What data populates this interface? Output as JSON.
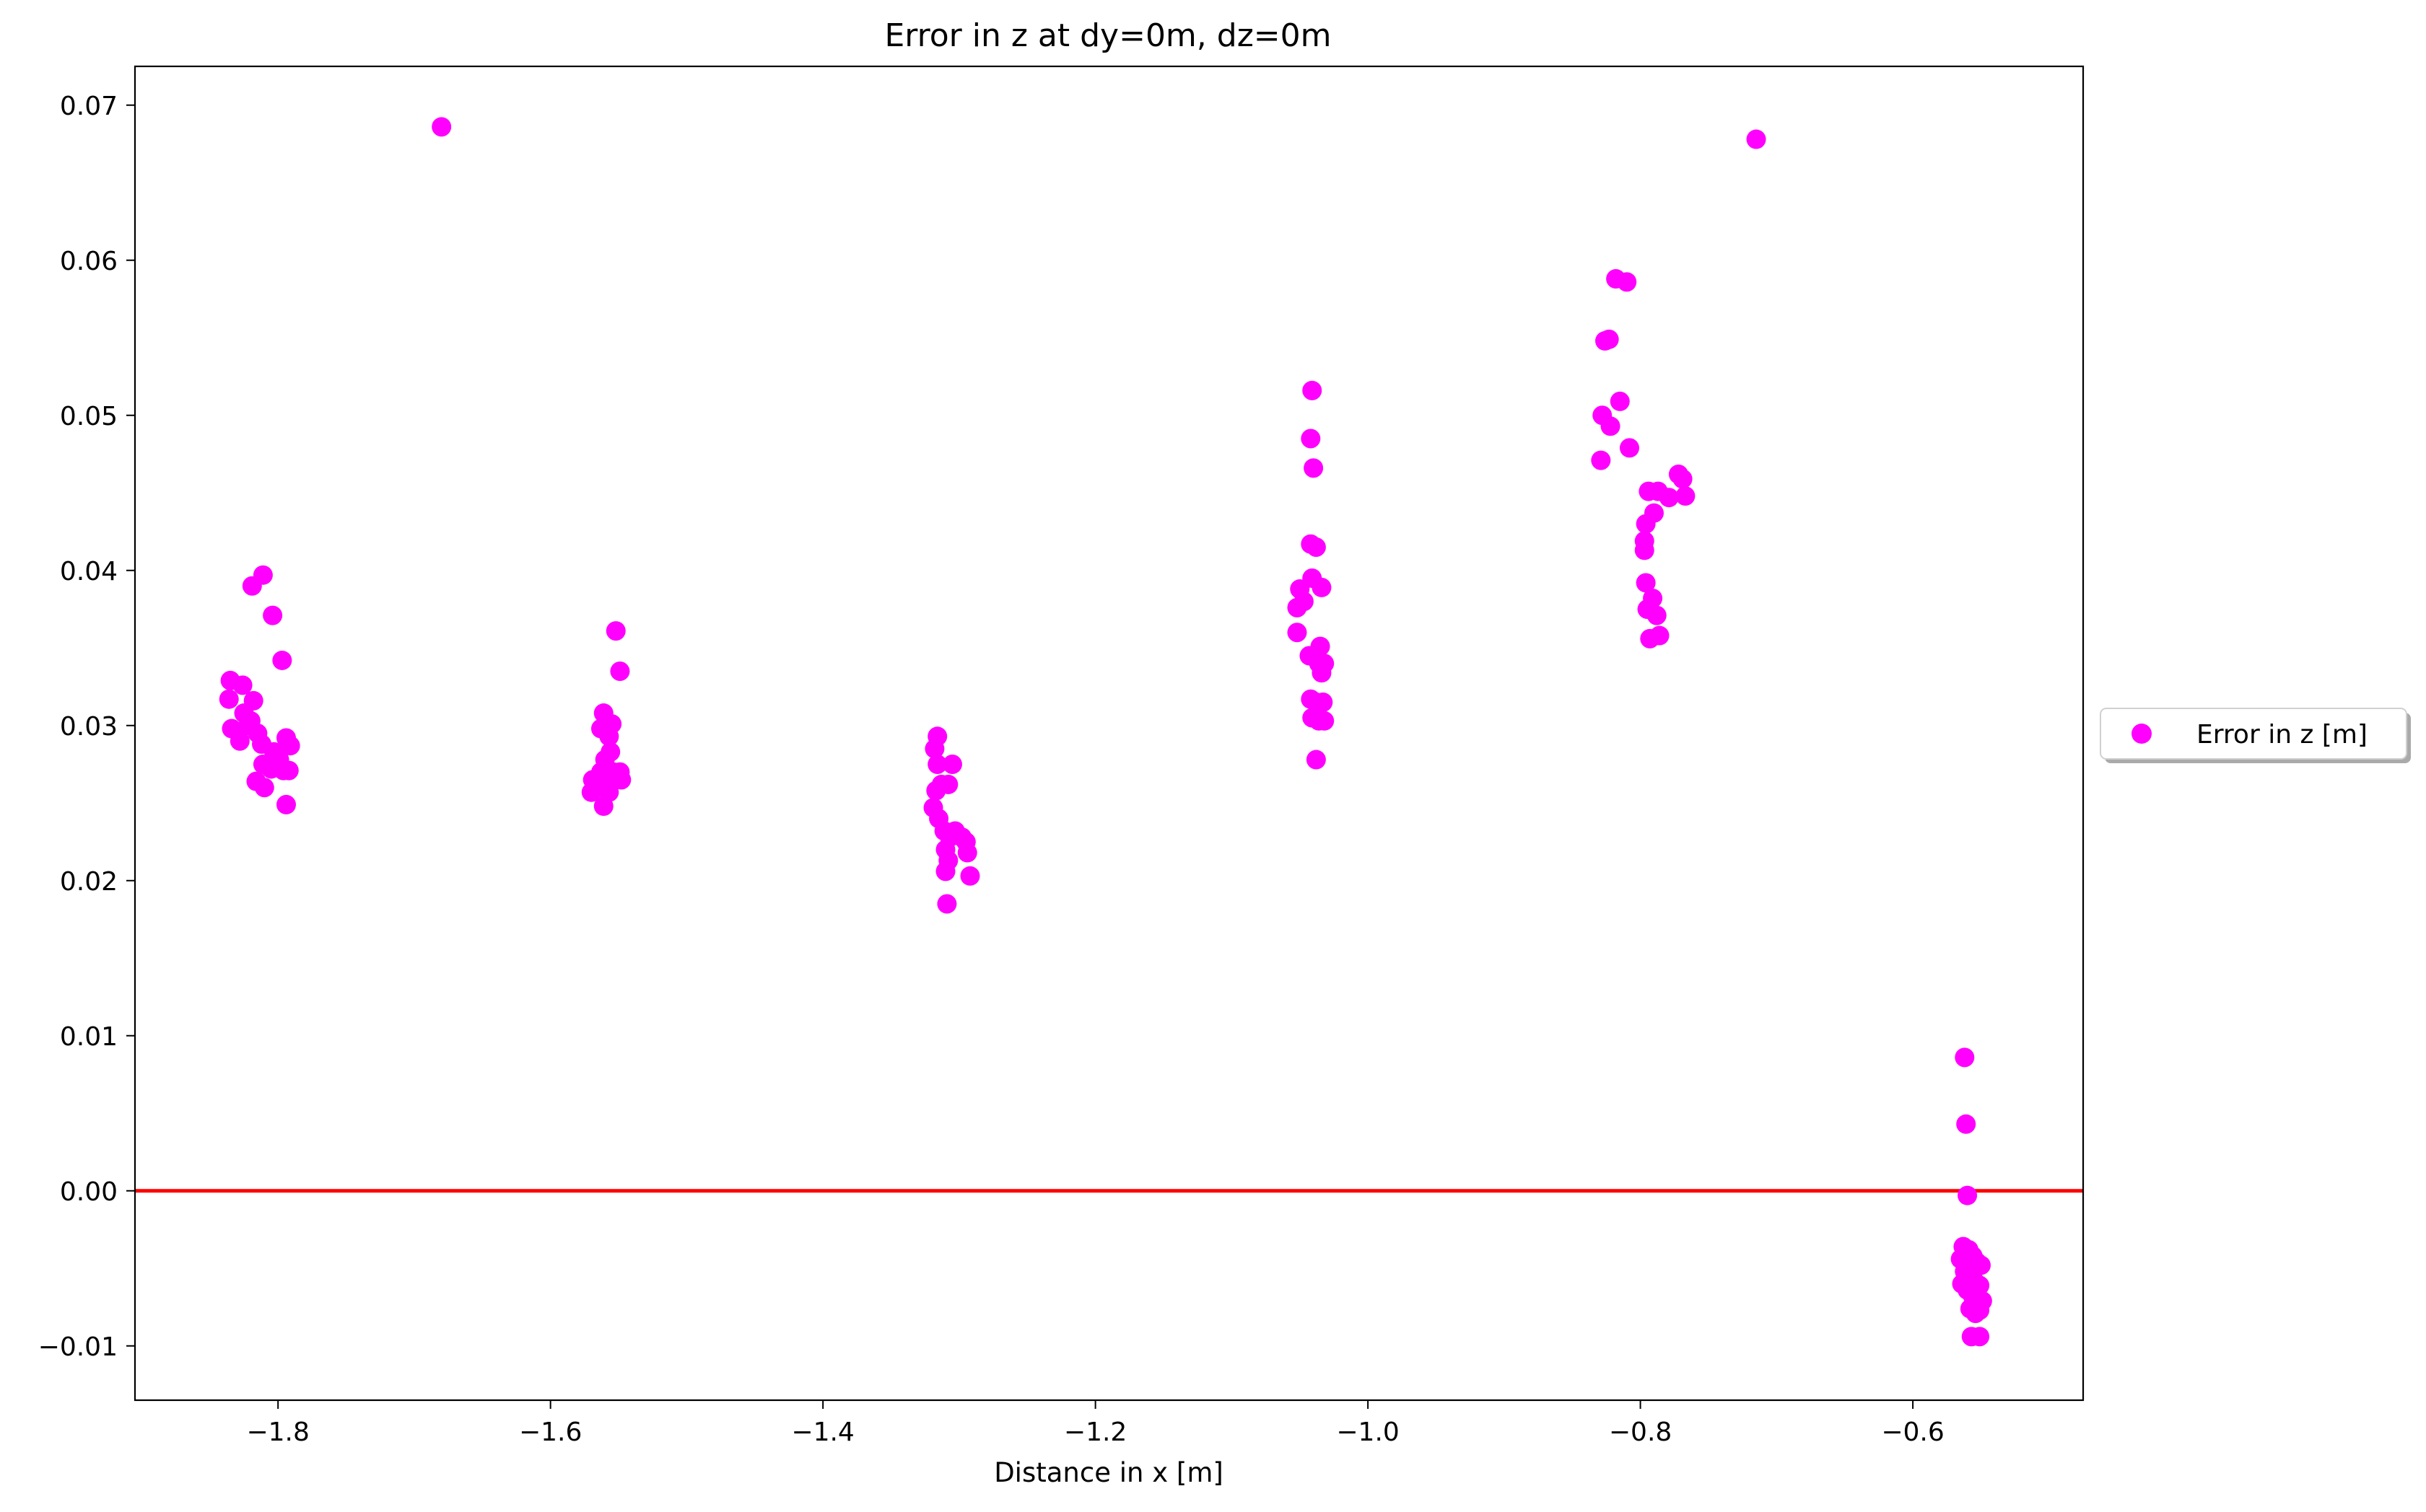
{
  "chart_data": {
    "type": "scatter",
    "title": "Error in z at dy=0m, dz=0m",
    "xlabel": "Distance in x [m]",
    "ylabel": "",
    "xlim": [
      -1.905,
      -0.475
    ],
    "ylim": [
      -0.0135,
      0.0725
    ],
    "x_ticks": [
      {
        "value": -1.8,
        "label": "−1.8"
      },
      {
        "value": -1.6,
        "label": "−1.6"
      },
      {
        "value": -1.4,
        "label": "−1.4"
      },
      {
        "value": -1.2,
        "label": "−1.2"
      },
      {
        "value": -1.0,
        "label": "−1.0"
      },
      {
        "value": -0.8,
        "label": "−0.8"
      },
      {
        "value": -0.6,
        "label": "−0.6"
      }
    ],
    "y_ticks": [
      {
        "value": -0.01,
        "label": "−0.01"
      },
      {
        "value": 0.0,
        "label": "0.00"
      },
      {
        "value": 0.01,
        "label": "0.01"
      },
      {
        "value": 0.02,
        "label": "0.02"
      },
      {
        "value": 0.03,
        "label": "0.03"
      },
      {
        "value": 0.04,
        "label": "0.04"
      },
      {
        "value": 0.05,
        "label": "0.05"
      },
      {
        "value": 0.06,
        "label": "0.06"
      },
      {
        "value": 0.07,
        "label": "0.07"
      }
    ],
    "grid": false,
    "legend_position": "center-right outside",
    "reference_line": {
      "y": 0.0,
      "color": "#ff0000"
    },
    "series": [
      {
        "name": "Error in z [m]",
        "color": "#ff00ff",
        "points": [
          [
            -1.835,
            0.0329
          ],
          [
            -1.836,
            0.0317
          ],
          [
            -1.834,
            0.0298
          ],
          [
            -1.826,
            0.0326
          ],
          [
            -1.825,
            0.0308
          ],
          [
            -1.822,
            0.03
          ],
          [
            -1.828,
            0.029
          ],
          [
            -1.819,
            0.039
          ],
          [
            -1.811,
            0.0397
          ],
          [
            -1.818,
            0.0316
          ],
          [
            -1.82,
            0.0303
          ],
          [
            -1.815,
            0.0295
          ],
          [
            -1.812,
            0.0288
          ],
          [
            -1.816,
            0.0264
          ],
          [
            -1.81,
            0.026
          ],
          [
            -1.811,
            0.0275
          ],
          [
            -1.805,
            0.0272
          ],
          [
            -1.804,
            0.0371
          ],
          [
            -1.797,
            0.0342
          ],
          [
            -1.803,
            0.0283
          ],
          [
            -1.799,
            0.0278
          ],
          [
            -1.794,
            0.0292
          ],
          [
            -1.791,
            0.0287
          ],
          [
            -1.792,
            0.0271
          ],
          [
            -1.796,
            0.0271
          ],
          [
            -1.794,
            0.0249
          ],
          [
            -1.68,
            0.0686
          ],
          [
            -1.569,
            0.0265
          ],
          [
            -1.57,
            0.0257
          ],
          [
            -1.563,
            0.0298
          ],
          [
            -1.561,
            0.0308
          ],
          [
            -1.555,
            0.0301
          ],
          [
            -1.557,
            0.0293
          ],
          [
            -1.552,
            0.0361
          ],
          [
            -1.549,
            0.0335
          ],
          [
            -1.56,
            0.0278
          ],
          [
            -1.556,
            0.0283
          ],
          [
            -1.554,
            0.027
          ],
          [
            -1.559,
            0.0264
          ],
          [
            -1.562,
            0.026
          ],
          [
            -1.557,
            0.0257
          ],
          [
            -1.561,
            0.0248
          ],
          [
            -1.549,
            0.027
          ],
          [
            -1.548,
            0.0265
          ],
          [
            -1.563,
            0.027
          ],
          [
            -1.316,
            0.0293
          ],
          [
            -1.318,
            0.0285
          ],
          [
            -1.316,
            0.0275
          ],
          [
            -1.313,
            0.0262
          ],
          [
            -1.317,
            0.0258
          ],
          [
            -1.319,
            0.0247
          ],
          [
            -1.315,
            0.024
          ],
          [
            -1.305,
            0.0275
          ],
          [
            -1.308,
            0.0262
          ],
          [
            -1.311,
            0.0232
          ],
          [
            -1.307,
            0.0228
          ],
          [
            -1.303,
            0.0232
          ],
          [
            -1.298,
            0.0228
          ],
          [
            -1.295,
            0.0225
          ],
          [
            -1.294,
            0.0218
          ],
          [
            -1.31,
            0.022
          ],
          [
            -1.308,
            0.0213
          ],
          [
            -1.31,
            0.0206
          ],
          [
            -1.292,
            0.0203
          ],
          [
            -1.309,
            0.0185
          ],
          [
            -1.041,
            0.0516
          ],
          [
            -1.042,
            0.0485
          ],
          [
            -1.04,
            0.0466
          ],
          [
            -1.052,
            0.0376
          ],
          [
            -1.05,
            0.0388
          ],
          [
            -1.047,
            0.038
          ],
          [
            -1.052,
            0.036
          ],
          [
            -1.042,
            0.0417
          ],
          [
            -1.038,
            0.0415
          ],
          [
            -1.041,
            0.0395
          ],
          [
            -1.034,
            0.0389
          ],
          [
            -1.043,
            0.0345
          ],
          [
            -1.035,
            0.0351
          ],
          [
            -1.036,
            0.034
          ],
          [
            -1.032,
            0.034
          ],
          [
            -1.034,
            0.0334
          ],
          [
            -1.042,
            0.0317
          ],
          [
            -1.038,
            0.0315
          ],
          [
            -1.033,
            0.0315
          ],
          [
            -1.041,
            0.0305
          ],
          [
            -1.036,
            0.0303
          ],
          [
            -1.032,
            0.0303
          ],
          [
            -1.038,
            0.0278
          ],
          [
            -0.818,
            0.0588
          ],
          [
            -0.81,
            0.0586
          ],
          [
            -0.826,
            0.0548
          ],
          [
            -0.823,
            0.0549
          ],
          [
            -0.815,
            0.0509
          ],
          [
            -0.828,
            0.05
          ],
          [
            -0.822,
            0.0493
          ],
          [
            -0.808,
            0.0479
          ],
          [
            -0.829,
            0.0471
          ],
          [
            -0.794,
            0.0451
          ],
          [
            -0.787,
            0.0451
          ],
          [
            -0.779,
            0.0447
          ],
          [
            -0.772,
            0.0462
          ],
          [
            -0.769,
            0.0459
          ],
          [
            -0.767,
            0.0448
          ],
          [
            -0.79,
            0.0437
          ],
          [
            -0.796,
            0.043
          ],
          [
            -0.797,
            0.0419
          ],
          [
            -0.797,
            0.0413
          ],
          [
            -0.796,
            0.0392
          ],
          [
            -0.791,
            0.0382
          ],
          [
            -0.795,
            0.0375
          ],
          [
            -0.788,
            0.0371
          ],
          [
            -0.786,
            0.0358
          ],
          [
            -0.793,
            0.0356
          ],
          [
            -0.715,
            0.0678
          ],
          [
            -0.562,
            0.0086
          ],
          [
            -0.561,
            0.0043
          ],
          [
            -0.56,
            -0.0003
          ],
          [
            -0.563,
            -0.0036
          ],
          [
            -0.559,
            -0.0038
          ],
          [
            -0.556,
            -0.0042
          ],
          [
            -0.553,
            -0.0046
          ],
          [
            -0.55,
            -0.0048
          ],
          [
            -0.565,
            -0.0044
          ],
          [
            -0.562,
            -0.0052
          ],
          [
            -0.558,
            -0.0055
          ],
          [
            -0.555,
            -0.0058
          ],
          [
            -0.551,
            -0.0061
          ],
          [
            -0.564,
            -0.006
          ],
          [
            -0.56,
            -0.0064
          ],
          [
            -0.556,
            -0.0068
          ],
          [
            -0.552,
            -0.0069
          ],
          [
            -0.549,
            -0.0071
          ],
          [
            -0.558,
            -0.0076
          ],
          [
            -0.554,
            -0.0079
          ],
          [
            -0.551,
            -0.0077
          ],
          [
            -0.557,
            -0.0094
          ],
          [
            -0.551,
            -0.0094
          ]
        ]
      }
    ]
  }
}
